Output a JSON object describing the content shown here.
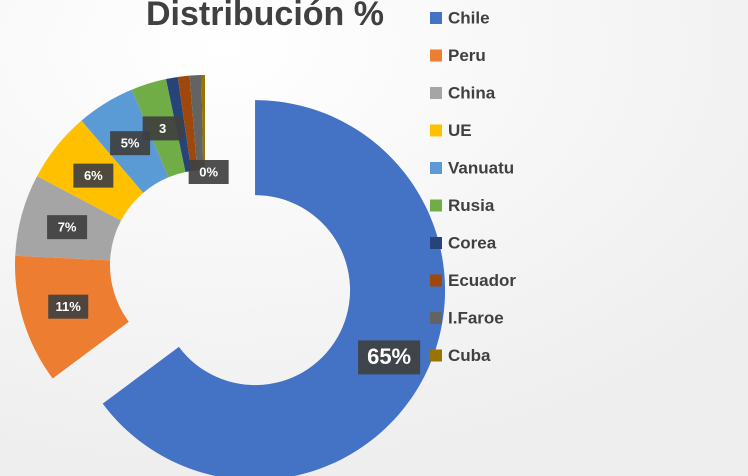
{
  "chart_data": {
    "type": "donut",
    "title": "Distribución %",
    "categories": [
      "Chile",
      "Peru",
      "China",
      "UE",
      "Vanuatu",
      "Rusia",
      "Corea",
      "Ecuador",
      "I.Faroe",
      "Cuba"
    ],
    "values": [
      65,
      11,
      7,
      6,
      5,
      3,
      1,
      1,
      1,
      0.3
    ],
    "value_labels": [
      "65%",
      "11%",
      "7%",
      "6%",
      "5%",
      "3",
      null,
      null,
      null,
      "0%"
    ],
    "colors": [
      "#4472c4",
      "#ed7d31",
      "#a5a5a5",
      "#ffc000",
      "#5b9bd5",
      "#70ad47",
      "#264478",
      "#9e480e",
      "#636363",
      "#997300"
    ],
    "legend": "right"
  }
}
